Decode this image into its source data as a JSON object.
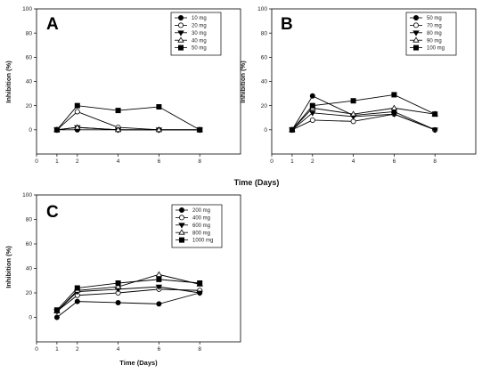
{
  "shared_xlabel": "Time (Days)",
  "chart_data": [
    {
      "type": "line",
      "panel": "A",
      "xlabel": "",
      "ylabel": "Inhibition (%)",
      "xlim": [
        0,
        10
      ],
      "ylim": [
        -20,
        100
      ],
      "xticks": [
        0,
        1,
        2,
        4,
        6,
        8
      ],
      "yticks": [
        0,
        20,
        40,
        60,
        80,
        100
      ],
      "legend_position": "top-right",
      "x": [
        1,
        2,
        4,
        6,
        8
      ],
      "series": [
        {
          "name": "10 mg",
          "marker": "circle-filled",
          "values": [
            0,
            0,
            0,
            0,
            0
          ]
        },
        {
          "name": "20 mg",
          "marker": "circle-open",
          "values": [
            0,
            15,
            2,
            0,
            0
          ]
        },
        {
          "name": "30 mg",
          "marker": "triangle-down-filled",
          "values": [
            0,
            2,
            0,
            0,
            0
          ]
        },
        {
          "name": "40 mg",
          "marker": "triangle-up-open",
          "values": [
            0,
            2,
            0,
            0,
            0
          ]
        },
        {
          "name": "50 mg",
          "marker": "square-filled",
          "values": [
            0,
            20,
            16,
            19,
            0
          ]
        }
      ]
    },
    {
      "type": "line",
      "panel": "B",
      "xlabel": "",
      "ylabel": "Inhibition (%)",
      "xlim": [
        0,
        10
      ],
      "ylim": [
        -20,
        100
      ],
      "xticks": [
        0,
        1,
        2,
        4,
        6,
        8
      ],
      "yticks": [
        0,
        20,
        40,
        60,
        80,
        100
      ],
      "legend_position": "top-right",
      "x": [
        1,
        2,
        4,
        6,
        8
      ],
      "series": [
        {
          "name": "50 mg",
          "marker": "circle-filled",
          "values": [
            0,
            28,
            12,
            15,
            0
          ]
        },
        {
          "name": "70 mg",
          "marker": "circle-open",
          "values": [
            0,
            8,
            7,
            13,
            0
          ]
        },
        {
          "name": "80 mg",
          "marker": "triangle-down-filled",
          "values": [
            0,
            14,
            11,
            13,
            0
          ]
        },
        {
          "name": "90 mg",
          "marker": "triangle-up-open",
          "values": [
            0,
            18,
            13,
            18,
            13
          ]
        },
        {
          "name": "100 mg",
          "marker": "square-filled",
          "values": [
            0,
            20,
            24,
            29,
            13
          ]
        }
      ]
    },
    {
      "type": "line",
      "panel": "C",
      "xlabel": "Time (Days)",
      "ylabel": "Inhibition (%)",
      "xlim": [
        0,
        10
      ],
      "ylim": [
        -20,
        100
      ],
      "xticks": [
        0,
        1,
        2,
        4,
        6,
        8
      ],
      "yticks": [
        0,
        20,
        40,
        60,
        80,
        100
      ],
      "legend_position": "top-right",
      "x": [
        1,
        2,
        4,
        6,
        8
      ],
      "series": [
        {
          "name": "200 mg",
          "marker": "circle-filled",
          "values": [
            0,
            13,
            12,
            11,
            20
          ]
        },
        {
          "name": "400 mg",
          "marker": "circle-open",
          "values": [
            5,
            18,
            20,
            23,
            22
          ]
        },
        {
          "name": "600 mg",
          "marker": "triangle-down-filled",
          "values": [
            5,
            21,
            23,
            25,
            20
          ]
        },
        {
          "name": "800 mg",
          "marker": "triangle-up-open",
          "values": [
            5,
            22,
            25,
            35,
            27
          ]
        },
        {
          "name": "1000 mg",
          "marker": "square-filled",
          "values": [
            6,
            24,
            28,
            31,
            28
          ]
        }
      ]
    }
  ]
}
